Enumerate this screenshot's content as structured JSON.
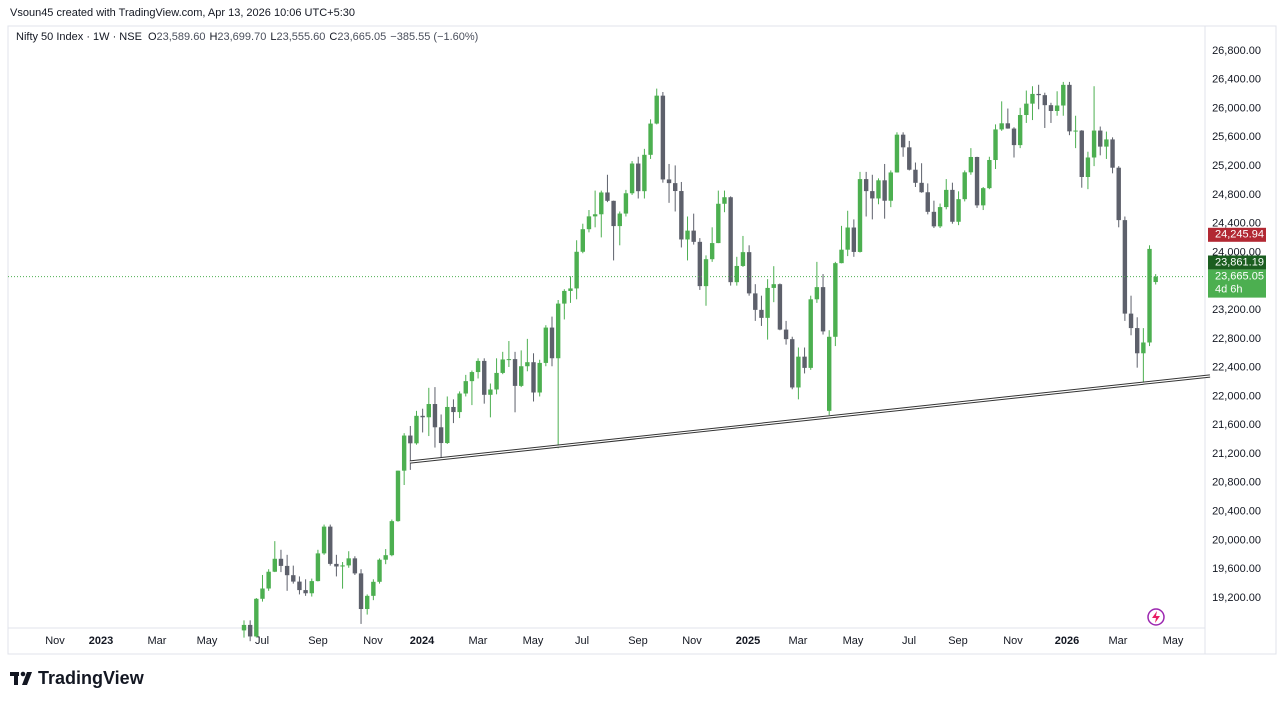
{
  "attribution": "Vsoun45 created with TradingView.com, Apr 13, 2026 10:06 UTC+5:30",
  "legend": {
    "symbol": "Nifty 50 Index · 1W · NSE",
    "ohlc": [
      {
        "key": "O",
        "value": "23,589.60"
      },
      {
        "key": "H",
        "value": "23,699.70"
      },
      {
        "key": "L",
        "value": "23,555.60"
      },
      {
        "key": "C",
        "value": "23,665.05"
      }
    ],
    "change": "−385.55 (−1.60%)"
  },
  "footer": {
    "brand": "TradingView"
  },
  "chart_data": {
    "type": "candlestick",
    "up_color": "#4caf50",
    "down_color": "#5d606b",
    "grid": false,
    "ylim": [
      18825,
      26980
    ],
    "yticks": [
      {
        "value": 19200,
        "label": "19,200.00"
      },
      {
        "value": 19600,
        "label": "19,600.00"
      },
      {
        "value": 20000,
        "label": "20,000.00"
      },
      {
        "value": 20400,
        "label": "20,400.00"
      },
      {
        "value": 20800,
        "label": "20,800.00"
      },
      {
        "value": 21200,
        "label": "21,200.00"
      },
      {
        "value": 21600,
        "label": "21,600.00"
      },
      {
        "value": 22000,
        "label": "22,000.00"
      },
      {
        "value": 22400,
        "label": "22,400.00"
      },
      {
        "value": 22800,
        "label": "22,800.00"
      },
      {
        "value": 23200,
        "label": "23,200.00"
      },
      {
        "value": 23600,
        "label": "23,600.00"
      },
      {
        "value": 24000,
        "label": "24,000.00"
      },
      {
        "value": 24400,
        "label": "24,400.00"
      },
      {
        "value": 24800,
        "label": "24,800.00"
      },
      {
        "value": 25200,
        "label": "25,200.00"
      },
      {
        "value": 25600,
        "label": "25,600.00"
      },
      {
        "value": 26000,
        "label": "26,000.00"
      },
      {
        "value": 26400,
        "label": "26,400.00"
      },
      {
        "value": 26800,
        "label": "26,800.00"
      }
    ],
    "x_labels": [
      "Nov",
      "2023",
      "Mar",
      "May",
      "Jul",
      "Sep",
      "Nov",
      "2024",
      "Mar",
      "May",
      "Jul",
      "Sep",
      "Nov",
      "2025",
      "Mar",
      "May",
      "Jul",
      "Sep",
      "Nov",
      "2026",
      "Mar",
      "May"
    ],
    "price_labels": [
      {
        "value": 24245.94,
        "label": "24,245.94",
        "color": "#b22833"
      },
      {
        "value": 23861.19,
        "label": "23,861.19",
        "color": "#1b5e20"
      },
      {
        "value": 23665.05,
        "label": "23,665.05",
        "sublabel": "4d 6h",
        "color": "#4caf50"
      }
    ],
    "ohlc": [
      [
        18750,
        18890,
        18650,
        18826
      ],
      [
        18826,
        18890,
        18600,
        18666
      ],
      [
        18666,
        19200,
        18650,
        19189
      ],
      [
        19189,
        19520,
        19150,
        19332
      ],
      [
        19332,
        19600,
        19300,
        19565
      ],
      [
        19565,
        19990,
        19560,
        19745
      ],
      [
        19745,
        19870,
        19560,
        19646
      ],
      [
        19646,
        19800,
        19300,
        19517
      ],
      [
        19517,
        19650,
        19400,
        19428
      ],
      [
        19428,
        19500,
        19250,
        19310
      ],
      [
        19310,
        19460,
        19230,
        19266
      ],
      [
        19266,
        19470,
        19220,
        19435
      ],
      [
        19435,
        19870,
        19430,
        19820
      ],
      [
        19820,
        20220,
        19800,
        20192
      ],
      [
        20192,
        20220,
        19650,
        19674
      ],
      [
        19674,
        19800,
        19500,
        19638
      ],
      [
        19638,
        19700,
        19330,
        19653
      ],
      [
        19653,
        19850,
        19620,
        19751
      ],
      [
        19751,
        19780,
        19520,
        19542
      ],
      [
        19542,
        19600,
        18840,
        19047
      ],
      [
        19047,
        19250,
        18970,
        19230
      ],
      [
        19230,
        19460,
        19170,
        19425
      ],
      [
        19425,
        19750,
        19400,
        19732
      ],
      [
        19732,
        19880,
        19670,
        19795
      ],
      [
        19795,
        20290,
        19780,
        20268
      ],
      [
        20268,
        20970,
        20260,
        20969
      ],
      [
        20969,
        21490,
        20770,
        21457
      ],
      [
        21457,
        21590,
        20980,
        21349
      ],
      [
        21349,
        21800,
        21330,
        21731
      ],
      [
        21731,
        21830,
        21500,
        21711
      ],
      [
        21711,
        22120,
        21450,
        21895
      ],
      [
        21895,
        22130,
        21290,
        21572
      ],
      [
        21572,
        21750,
        21140,
        21353
      ],
      [
        21353,
        22000,
        21340,
        21854
      ],
      [
        21854,
        21960,
        21630,
        21783
      ],
      [
        21783,
        22070,
        21700,
        22041
      ],
      [
        22041,
        22300,
        22000,
        22213
      ],
      [
        22213,
        22360,
        21880,
        22339
      ],
      [
        22339,
        22530,
        22250,
        22494
      ],
      [
        22494,
        22530,
        21900,
        22023
      ],
      [
        22023,
        22180,
        21710,
        22097
      ],
      [
        22097,
        22530,
        22030,
        22327
      ],
      [
        22327,
        22620,
        22310,
        22514
      ],
      [
        22514,
        22770,
        22410,
        22519
      ],
      [
        22519,
        22620,
        21780,
        22147
      ],
      [
        22147,
        22640,
        22130,
        22420
      ],
      [
        22420,
        22800,
        22350,
        22476
      ],
      [
        22476,
        22600,
        21930,
        22055
      ],
      [
        22055,
        22510,
        22000,
        22466
      ],
      [
        22466,
        22990,
        22420,
        22957
      ],
      [
        22957,
        23110,
        22420,
        22531
      ],
      [
        22531,
        23340,
        21281,
        23290
      ],
      [
        23290,
        23490,
        23070,
        23466
      ],
      [
        23466,
        23670,
        23300,
        23501
      ],
      [
        23501,
        24170,
        23350,
        24010
      ],
      [
        24010,
        24400,
        23990,
        24324
      ],
      [
        24324,
        24590,
        24280,
        24502
      ],
      [
        24502,
        24860,
        24350,
        24531
      ],
      [
        24531,
        24860,
        24210,
        24834
      ],
      [
        24834,
        25080,
        24700,
        24718
      ],
      [
        24718,
        24720,
        23890,
        24367
      ],
      [
        24367,
        24570,
        24100,
        24541
      ],
      [
        24541,
        24870,
        24500,
        24823
      ],
      [
        24823,
        25270,
        24800,
        25236
      ],
      [
        25236,
        25330,
        24750,
        24852
      ],
      [
        24852,
        25440,
        24750,
        25357
      ],
      [
        25357,
        25850,
        25300,
        25791
      ],
      [
        25791,
        26277,
        25780,
        26179
      ],
      [
        26179,
        26230,
        24970,
        25015
      ],
      [
        25015,
        25230,
        24690,
        24964
      ],
      [
        24964,
        25210,
        24570,
        24854
      ],
      [
        24854,
        24980,
        24070,
        24181
      ],
      [
        24181,
        24500,
        23890,
        24304
      ],
      [
        24304,
        24540,
        24110,
        24148
      ],
      [
        24148,
        24200,
        23480,
        23533
      ],
      [
        23533,
        23960,
        23260,
        23907
      ],
      [
        23907,
        24350,
        23870,
        24131
      ],
      [
        24131,
        24860,
        24130,
        24677
      ],
      [
        24677,
        24860,
        24560,
        24768
      ],
      [
        24768,
        24780,
        23540,
        23588
      ],
      [
        23588,
        23940,
        23540,
        23813
      ],
      [
        23813,
        24230,
        23800,
        24005
      ],
      [
        24005,
        24100,
        23400,
        23432
      ],
      [
        23432,
        23560,
        23050,
        23203
      ],
      [
        23203,
        23400,
        22980,
        23092
      ],
      [
        23092,
        23630,
        22790,
        23508
      ],
      [
        23508,
        23810,
        23310,
        23560
      ],
      [
        23560,
        23570,
        22920,
        22929
      ],
      [
        22929,
        23050,
        22720,
        22796
      ],
      [
        22796,
        22830,
        22100,
        22125
      ],
      [
        22125,
        22680,
        21960,
        22553
      ],
      [
        22553,
        22680,
        22320,
        22397
      ],
      [
        22397,
        23400,
        22370,
        23350
      ],
      [
        23350,
        23870,
        23300,
        23519
      ],
      [
        23519,
        23700,
        22860,
        22904
      ],
      [
        21800,
        22920,
        21743,
        22829
      ],
      [
        22829,
        23870,
        22700,
        23852
      ],
      [
        23852,
        24370,
        23850,
        24039
      ],
      [
        24039,
        24580,
        23950,
        24347
      ],
      [
        24347,
        24460,
        23940,
        24008
      ],
      [
        24008,
        25120,
        24000,
        25020
      ],
      [
        25020,
        25120,
        24500,
        24853
      ],
      [
        24853,
        25080,
        24460,
        24751
      ],
      [
        24751,
        25030,
        24670,
        25003
      ],
      [
        25003,
        25230,
        24470,
        24719
      ],
      [
        24719,
        25140,
        24630,
        25112
      ],
      [
        25112,
        25670,
        25110,
        25637
      ],
      [
        25637,
        25670,
        25330,
        25461
      ],
      [
        25461,
        25550,
        25140,
        25150
      ],
      [
        25150,
        25250,
        24910,
        24968
      ],
      [
        24968,
        25240,
        24830,
        24837
      ],
      [
        24837,
        24960,
        24530,
        24565
      ],
      [
        24565,
        24720,
        24340,
        24363
      ],
      [
        24363,
        24680,
        24340,
        24631
      ],
      [
        24631,
        25020,
        24600,
        24870
      ],
      [
        24870,
        24970,
        24400,
        24427
      ],
      [
        24427,
        24850,
        24380,
        24741
      ],
      [
        24741,
        25140,
        24710,
        25114
      ],
      [
        25114,
        25450,
        25080,
        25327
      ],
      [
        25327,
        25330,
        24620,
        24655
      ],
      [
        24655,
        24910,
        24590,
        24894
      ],
      [
        24894,
        25330,
        24880,
        25285
      ],
      [
        25285,
        25780,
        25160,
        25710
      ],
      [
        25710,
        26100,
        25690,
        25795
      ],
      [
        25795,
        26000,
        25720,
        25722
      ],
      [
        25722,
        25740,
        25320,
        25492
      ],
      [
        25492,
        26010,
        25450,
        25910
      ],
      [
        25910,
        26250,
        25800,
        26068
      ],
      [
        26068,
        26310,
        25840,
        26203
      ],
      [
        26203,
        26330,
        25990,
        26186
      ],
      [
        26186,
        26220,
        25730,
        26047
      ],
      [
        26047,
        26080,
        25800,
        25966
      ],
      [
        25966,
        26240,
        25900,
        26042
      ],
      [
        26042,
        26370,
        25900,
        26329
      ],
      [
        26329,
        26370,
        25630,
        25683
      ],
      [
        25683,
        25900,
        25450,
        25694
      ],
      [
        25694,
        25700,
        24900,
        25049
      ],
      [
        25049,
        25400,
        24880,
        25320
      ],
      [
        25320,
        26310,
        25200,
        25694
      ],
      [
        25694,
        25750,
        25350,
        25471
      ],
      [
        25471,
        25680,
        25300,
        25571
      ],
      [
        25571,
        25600,
        25100,
        25178
      ],
      [
        25178,
        25200,
        24350,
        24450
      ],
      [
        24450,
        24500,
        23050,
        23151
      ],
      [
        23151,
        23400,
        22850,
        22950
      ],
      [
        22950,
        23100,
        22400,
        22600
      ],
      [
        22600,
        22950,
        22182,
        22750
      ],
      [
        22750,
        24100,
        22700,
        24050
      ],
      [
        23589.6,
        23699.7,
        23555.6,
        23665.05
      ]
    ]
  }
}
